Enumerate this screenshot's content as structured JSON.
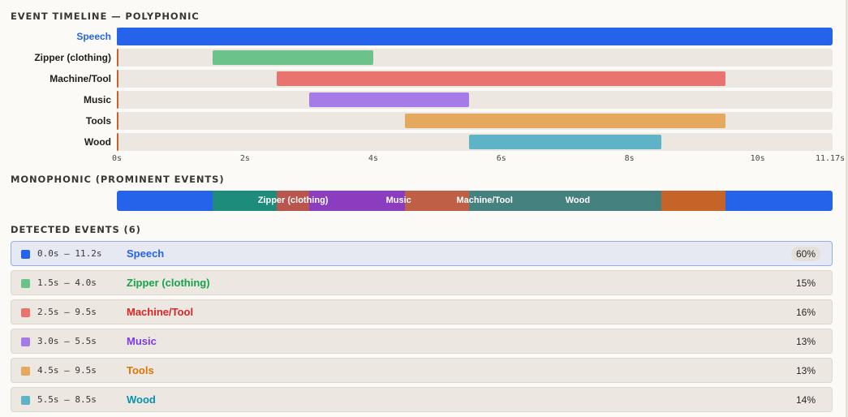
{
  "polyphonic_title": "EVENT TIMELINE — POLYPHONIC",
  "monophonic_title": "MONOPHONIC (PROMINENT EVENTS)",
  "detected_title": "DETECTED EVENTS (6)",
  "duration": 11.17,
  "axis_ticks": [
    {
      "value": 0,
      "label": "0s"
    },
    {
      "value": 2,
      "label": "2s"
    },
    {
      "value": 4,
      "label": "4s"
    },
    {
      "value": 6,
      "label": "6s"
    },
    {
      "value": 8,
      "label": "8s"
    },
    {
      "value": 10,
      "label": "10s"
    },
    {
      "value": 11.17,
      "label": "11.17s"
    }
  ],
  "events": [
    {
      "label": "Speech",
      "start": 0.0,
      "end": 11.17,
      "time": "0.0s – 11.2s",
      "percent": "60%",
      "bar_color": "#2563eb",
      "text_color": "#2563eb",
      "active": true
    },
    {
      "label": "Zipper (clothing)",
      "start": 1.5,
      "end": 4.0,
      "time": "1.5s – 4.0s",
      "percent": "15%",
      "bar_color": "#6cc38a",
      "text_color": "#16a34a",
      "active": false
    },
    {
      "label": "Machine/Tool",
      "start": 2.5,
      "end": 9.5,
      "time": "2.5s – 9.5s",
      "percent": "16%",
      "bar_color": "#e8736f",
      "text_color": "#dc2626",
      "active": false
    },
    {
      "label": "Music",
      "start": 3.0,
      "end": 5.5,
      "time": "3.0s – 5.5s",
      "percent": "13%",
      "bar_color": "#a57be8",
      "text_color": "#7c3aed",
      "active": false
    },
    {
      "label": "Tools",
      "start": 4.5,
      "end": 9.5,
      "time": "4.5s – 9.5s",
      "percent": "13%",
      "bar_color": "#e4a85e",
      "text_color": "#d97706",
      "active": false
    },
    {
      "label": "Wood",
      "start": 5.5,
      "end": 8.5,
      "time": "5.5s – 8.5s",
      "percent": "14%",
      "bar_color": "#5fb3c6",
      "text_color": "#0891b2",
      "active": false
    }
  ],
  "monophonic_segments": [
    {
      "start": 1.5,
      "end": 2.5,
      "color": "#1d8c7a"
    },
    {
      "start": 2.5,
      "end": 3.0,
      "color": "#b8554d"
    },
    {
      "start": 3.0,
      "end": 4.5,
      "color": "#8b3dbf"
    },
    {
      "start": 4.5,
      "end": 5.5,
      "color": "#bf5f45"
    },
    {
      "start": 5.5,
      "end": 8.5,
      "color": "#44817f"
    },
    {
      "start": 8.5,
      "end": 9.5,
      "color": "#c56329"
    }
  ],
  "monophonic_labels": [
    {
      "text": "Zipper (clothing)",
      "at": 2.2
    },
    {
      "text": "Music",
      "at": 4.2
    },
    {
      "text": "Machine/Tool",
      "at": 5.3
    },
    {
      "text": "Wood",
      "at": 7.0
    }
  ]
}
